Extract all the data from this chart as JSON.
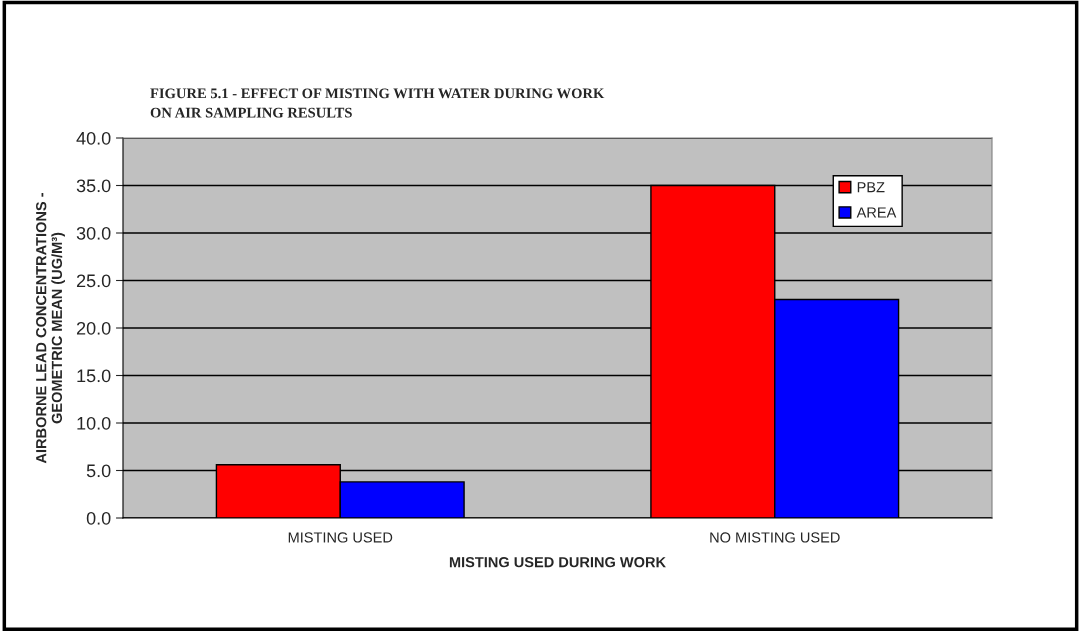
{
  "chart_data": {
    "type": "bar",
    "title": "FIGURE 5.1 - EFFECT OF MISTING WITH WATER DURING WORK\nON AIR SAMPLING RESULTS",
    "xlabel": "MISTING USED DURING WORK",
    "ylabel": "AIRBORNE LEAD CONCENTRATIONS -\nGEOMETRIC MEAN (UG/M³)",
    "categories": [
      "MISTING USED",
      "NO MISTING USED"
    ],
    "series": [
      {
        "name": "PBZ",
        "color": "#ff0000",
        "values": [
          5.6,
          35.0
        ]
      },
      {
        "name": "AREA",
        "color": "#0000ff",
        "values": [
          3.8,
          23.0
        ]
      }
    ],
    "ylim": [
      0,
      40
    ],
    "yticks": [
      {
        "value": 0,
        "label": "0.0"
      },
      {
        "value": 5,
        "label": "5.0"
      },
      {
        "value": 10,
        "label": "10.0"
      },
      {
        "value": 15,
        "label": "15.0"
      },
      {
        "value": 20,
        "label": "20.0"
      },
      {
        "value": 25,
        "label": "25.0"
      },
      {
        "value": 30,
        "label": "30.0"
      },
      {
        "value": 35,
        "label": "35.0"
      },
      {
        "value": 40,
        "label": "40.0"
      }
    ],
    "grid": "y",
    "legend": "top right"
  }
}
